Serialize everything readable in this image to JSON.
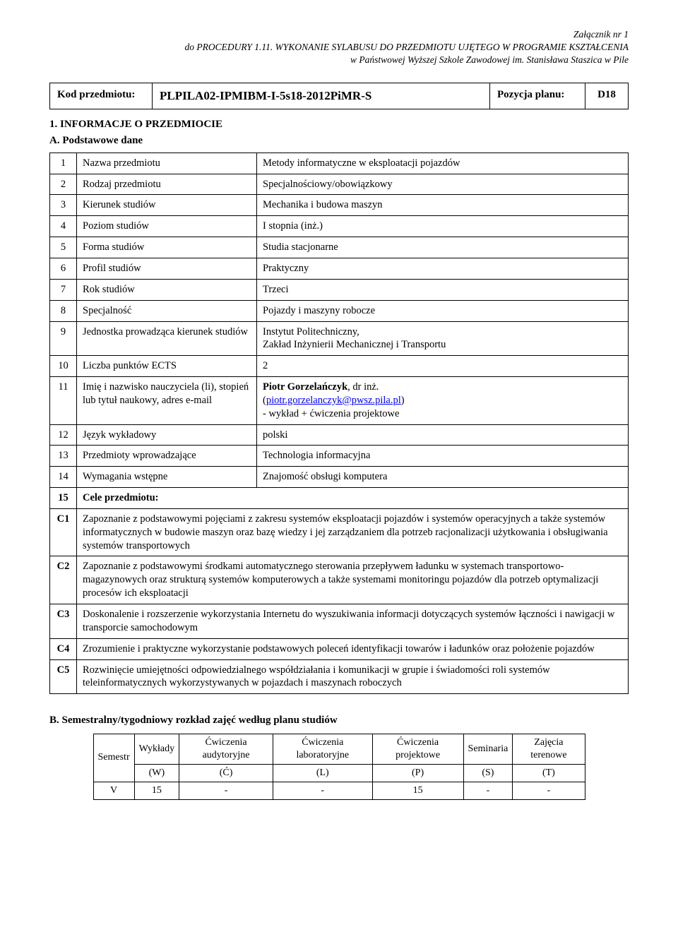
{
  "header": {
    "line1": "Załącznik nr 1",
    "line2": "do PROCEDURY 1.11. WYKONANIE SYLABUSU DO PRZEDMIOTU UJĘTEGO W PROGRAMIE KSZTAŁCENIA",
    "line3": "w Państwowej Wyższej Szkole Zawodowej im. Stanisława Staszica w Pile"
  },
  "code_box": {
    "code_label": "Kod przedmiotu:",
    "code_value": "PLPILA02-IPMIBM-I-5s18-2012PiMR-S",
    "pos_label": "Pozycja planu:",
    "pos_value": "D18"
  },
  "section1_title": "1. INFORMACJE O PRZEDMIOCIE",
  "sectionA_title": "A. Podstawowe dane",
  "rows": [
    {
      "num": "1",
      "label": "Nazwa przedmiotu",
      "value": "Metody informatyczne w eksploatacji pojazdów"
    },
    {
      "num": "2",
      "label": "Rodzaj przedmiotu",
      "value": "Specjalnościowy/obowiązkowy"
    },
    {
      "num": "3",
      "label": "Kierunek studiów",
      "value": "Mechanika i budowa maszyn"
    },
    {
      "num": "4",
      "label": "Poziom studiów",
      "value": "I stopnia (inż.)"
    },
    {
      "num": "5",
      "label": "Forma studiów",
      "value": "Studia stacjonarne"
    },
    {
      "num": "6",
      "label": "Profil studiów",
      "value": "Praktyczny"
    },
    {
      "num": "7",
      "label": "Rok studiów",
      "value": "Trzeci"
    },
    {
      "num": "8",
      "label": "Specjalność",
      "value": "Pojazdy i maszyny robocze"
    },
    {
      "num": "9",
      "label": "Jednostka prowadząca kierunek studiów",
      "value": "Instytut Politechniczny,\nZakład Inżynierii Mechanicznej i Transportu"
    },
    {
      "num": "10",
      "label": "Liczba punktów ECTS",
      "value": "2"
    },
    {
      "num": "11",
      "label": "Imię i nazwisko nauczyciela (li), stopień lub tytuł naukowy, adres e-mail",
      "value_special": true
    },
    {
      "num": "12",
      "label": "Język wykładowy",
      "value": "polski"
    },
    {
      "num": "13",
      "label": "Przedmioty wprowadzające",
      "value": "Technologia informacyjna"
    },
    {
      "num": "14",
      "label": "Wymagania wstępne",
      "value": "Znajomość obsługi komputera"
    }
  ],
  "row11": {
    "name_bold": "Piotr Gorzelańczyk",
    "degree": ", dr inż.",
    "open_paren": "(",
    "email": "piotr.gorzelanczyk@pwsz.pila.pl",
    "close_paren": ")",
    "line3": "- wykład + ćwiczenia projektowe"
  },
  "cele_header": {
    "num": "15",
    "label": "Cele przedmiotu:"
  },
  "cele": [
    {
      "code": "C1",
      "text": "Zapoznanie z podstawowymi pojęciami z zakresu systemów eksploatacji pojazdów i systemów operacyjnych a także systemów informatycznych w budowie maszyn oraz bazę wiedzy i jej zarządzaniem dla potrzeb racjonalizacji użytkowania i obsługiwania systemów transportowych"
    },
    {
      "code": "C2",
      "text": "Zapoznanie z podstawowymi środkami automatycznego sterowania przepływem ładunku w systemach transportowo-magazynowych oraz strukturą systemów komputerowych a także systemami monitoringu pojazdów dla potrzeb optymalizacji procesów ich eksploatacji"
    },
    {
      "code": "C3",
      "text": "Doskonalenie i rozszerzenie wykorzystania Internetu do wyszukiwania informacji dotyczących systemów łączności i nawigacji w transporcie samochodowym"
    },
    {
      "code": "C4",
      "text": "Zrozumienie i praktyczne wykorzystanie podstawowych poleceń identyfikacji towarów i ładunków oraz położenie pojazdów"
    },
    {
      "code": "C5",
      "text": "Rozwinięcie umiejętności odpowiedzialnego współdziałania i komunikacji w grupie i świadomości roli systemów teleinformatycznych wykorzystywanych w pojazdach i maszynach roboczych"
    }
  ],
  "sectionB_title": "B. Semestralny/tygodniowy rozkład zajęć według planu studiów",
  "schedule": {
    "headers_top": [
      "Semestr",
      "Wykłady",
      "Ćwiczenia audytoryjne",
      "Ćwiczenia laboratoryjne",
      "Ćwiczenia projektowe",
      "Seminaria",
      "Zajęcia terenowe"
    ],
    "headers_code": [
      "",
      "(W)",
      "(Ć)",
      "(L)",
      "(P)",
      "(S)",
      "(T)"
    ],
    "data_row": [
      "V",
      "15",
      "-",
      "-",
      "15",
      "-",
      "-"
    ]
  }
}
